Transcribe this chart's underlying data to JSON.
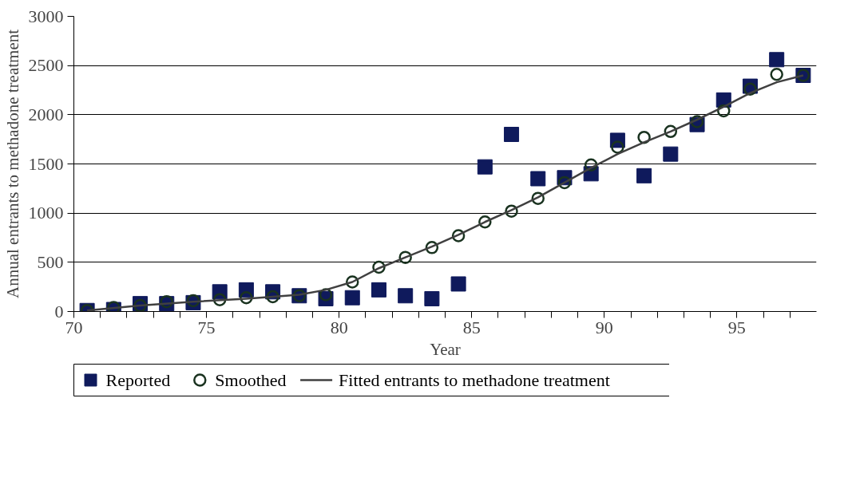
{
  "chart_data": {
    "type": "scatter",
    "xlabel": "Year",
    "ylabel": "Annual entrants to methadone treatment",
    "xlim": [
      69.5,
      97.5
    ],
    "ylim": [
      0,
      3000
    ],
    "xticks": [
      {
        "value": 69.5,
        "label": "70"
      },
      {
        "value": 70.5,
        "label": null
      },
      {
        "value": 71.5,
        "label": null
      },
      {
        "value": 72.5,
        "label": null
      },
      {
        "value": 73.5,
        "label": null
      },
      {
        "value": 74.5,
        "label": "75"
      },
      {
        "value": 75.5,
        "label": null
      },
      {
        "value": 76.5,
        "label": null
      },
      {
        "value": 77.5,
        "label": null
      },
      {
        "value": 78.5,
        "label": null
      },
      {
        "value": 79.5,
        "label": "80"
      },
      {
        "value": 80.5,
        "label": null
      },
      {
        "value": 81.5,
        "label": null
      },
      {
        "value": 82.5,
        "label": null
      },
      {
        "value": 83.5,
        "label": null
      },
      {
        "value": 84.5,
        "label": "85"
      },
      {
        "value": 85.5,
        "label": null
      },
      {
        "value": 86.5,
        "label": null
      },
      {
        "value": 87.5,
        "label": null
      },
      {
        "value": 88.5,
        "label": null
      },
      {
        "value": 89.5,
        "label": "90"
      },
      {
        "value": 90.5,
        "label": null
      },
      {
        "value": 91.5,
        "label": null
      },
      {
        "value": 92.5,
        "label": null
      },
      {
        "value": 93.5,
        "label": null
      },
      {
        "value": 94.5,
        "label": "95"
      },
      {
        "value": 95.5,
        "label": null
      },
      {
        "value": 96.5,
        "label": null
      }
    ],
    "yticks": [
      0,
      500,
      1000,
      1500,
      2000,
      2500,
      3000
    ],
    "grid": "y",
    "legend": "bottom",
    "x": [
      70,
      71,
      72,
      73,
      74,
      75,
      76,
      77,
      78,
      79,
      80,
      81,
      82,
      83,
      84,
      85,
      86,
      87,
      88,
      89,
      90,
      91,
      92,
      93,
      94,
      95,
      96,
      97
    ],
    "series": [
      {
        "name": "Reported",
        "marker": "square",
        "color": "#0f1a5c",
        "values": [
          10,
          20,
          80,
          80,
          90,
          200,
          220,
          200,
          160,
          130,
          140,
          220,
          160,
          130,
          280,
          1470,
          1800,
          1350,
          1360,
          1400,
          1740,
          1380,
          1600,
          1900,
          2150,
          2290,
          2560,
          2400
        ]
      },
      {
        "name": "Smoothed",
        "marker": "circle",
        "color": "#1a3320",
        "values": [
          10,
          40,
          60,
          100,
          110,
          120,
          140,
          150,
          160,
          170,
          300,
          450,
          550,
          650,
          770,
          910,
          1020,
          1150,
          1310,
          1490,
          1670,
          1770,
          1830,
          1930,
          2040,
          2260,
          2410,
          2400
        ]
      },
      {
        "name": "Fitted entrants to methadone treatment",
        "type": "line",
        "marker": "none",
        "line_style": "solid",
        "color": "#404040",
        "x": [
          70,
          72,
          74,
          76,
          78,
          79,
          80,
          81,
          82,
          83,
          84,
          85,
          86,
          87,
          88,
          89,
          90,
          91,
          92,
          93,
          94,
          95,
          96,
          97
        ],
        "values": [
          10,
          60,
          100,
          130,
          170,
          220,
          300,
          440,
          550,
          660,
          780,
          910,
          1030,
          1160,
          1310,
          1460,
          1600,
          1720,
          1830,
          1950,
          2080,
          2220,
          2330,
          2400
        ]
      }
    ]
  }
}
